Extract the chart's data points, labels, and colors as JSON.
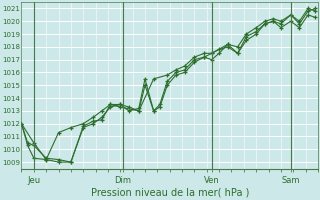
{
  "xlabel": "Pression niveau de la mer( hPa )",
  "bg_color": "#cce8e8",
  "grid_color": "#ffffff",
  "line_color": "#2d6e2d",
  "ylim": [
    1008.5,
    1021.5
  ],
  "yticks": [
    1009,
    1010,
    1011,
    1012,
    1013,
    1014,
    1015,
    1016,
    1017,
    1018,
    1019,
    1020,
    1021
  ],
  "xlim": [
    0,
    240
  ],
  "day_labels": [
    "Jeu",
    "Dim",
    "Ven",
    "Sam"
  ],
  "day_positions": [
    10,
    82,
    154,
    218
  ],
  "series1": [
    [
      0,
      1012.0
    ],
    [
      5,
      1010.5
    ],
    [
      10,
      1010.3
    ],
    [
      20,
      1009.3
    ],
    [
      30,
      1009.2
    ],
    [
      40,
      1009.0
    ],
    [
      50,
      1011.7
    ],
    [
      58,
      1012.0
    ],
    [
      65,
      1012.5
    ],
    [
      72,
      1013.3
    ],
    [
      80,
      1013.5
    ],
    [
      87,
      1013.3
    ],
    [
      95,
      1013.0
    ],
    [
      100,
      1015.0
    ],
    [
      107,
      1013.0
    ],
    [
      112,
      1013.3
    ],
    [
      118,
      1015.0
    ],
    [
      125,
      1015.8
    ],
    [
      132,
      1016.0
    ],
    [
      140,
      1016.8
    ],
    [
      148,
      1017.2
    ],
    [
      154,
      1017.0
    ],
    [
      160,
      1017.5
    ],
    [
      167,
      1018.2
    ],
    [
      175,
      1017.5
    ],
    [
      182,
      1018.5
    ],
    [
      190,
      1019.0
    ],
    [
      197,
      1019.8
    ],
    [
      204,
      1020.0
    ],
    [
      210,
      1019.8
    ],
    [
      218,
      1020.5
    ],
    [
      225,
      1019.8
    ],
    [
      232,
      1020.8
    ],
    [
      238,
      1021.0
    ]
  ],
  "series2": [
    [
      0,
      1012.0
    ],
    [
      5,
      1010.3
    ],
    [
      10,
      1009.3
    ],
    [
      20,
      1009.2
    ],
    [
      30,
      1009.0
    ],
    [
      40,
      1009.0
    ],
    [
      50,
      1011.8
    ],
    [
      58,
      1012.2
    ],
    [
      65,
      1012.3
    ],
    [
      72,
      1013.5
    ],
    [
      80,
      1013.5
    ],
    [
      87,
      1013.0
    ],
    [
      95,
      1013.2
    ],
    [
      100,
      1015.5
    ],
    [
      107,
      1013.0
    ],
    [
      112,
      1013.5
    ],
    [
      118,
      1015.3
    ],
    [
      125,
      1016.0
    ],
    [
      132,
      1016.2
    ],
    [
      140,
      1017.0
    ],
    [
      148,
      1017.2
    ],
    [
      154,
      1017.5
    ],
    [
      160,
      1017.8
    ],
    [
      167,
      1018.0
    ],
    [
      175,
      1017.5
    ],
    [
      182,
      1018.8
    ],
    [
      190,
      1019.2
    ],
    [
      197,
      1019.8
    ],
    [
      204,
      1020.0
    ],
    [
      210,
      1019.5
    ],
    [
      218,
      1020.0
    ],
    [
      225,
      1019.5
    ],
    [
      232,
      1020.5
    ],
    [
      238,
      1020.3
    ]
  ],
  "series3": [
    [
      0,
      1012.0
    ],
    [
      10,
      1010.5
    ],
    [
      20,
      1009.2
    ],
    [
      30,
      1011.3
    ],
    [
      40,
      1011.7
    ],
    [
      50,
      1012.0
    ],
    [
      58,
      1012.5
    ],
    [
      65,
      1013.0
    ],
    [
      72,
      1013.5
    ],
    [
      80,
      1013.3
    ],
    [
      95,
      1013.0
    ],
    [
      107,
      1015.5
    ],
    [
      118,
      1015.8
    ],
    [
      125,
      1016.2
    ],
    [
      132,
      1016.5
    ],
    [
      140,
      1017.2
    ],
    [
      148,
      1017.5
    ],
    [
      154,
      1017.5
    ],
    [
      167,
      1018.2
    ],
    [
      175,
      1018.0
    ],
    [
      182,
      1019.0
    ],
    [
      190,
      1019.5
    ],
    [
      197,
      1020.0
    ],
    [
      204,
      1020.2
    ],
    [
      210,
      1020.0
    ],
    [
      218,
      1020.5
    ],
    [
      225,
      1020.0
    ],
    [
      232,
      1021.0
    ],
    [
      238,
      1020.8
    ]
  ]
}
